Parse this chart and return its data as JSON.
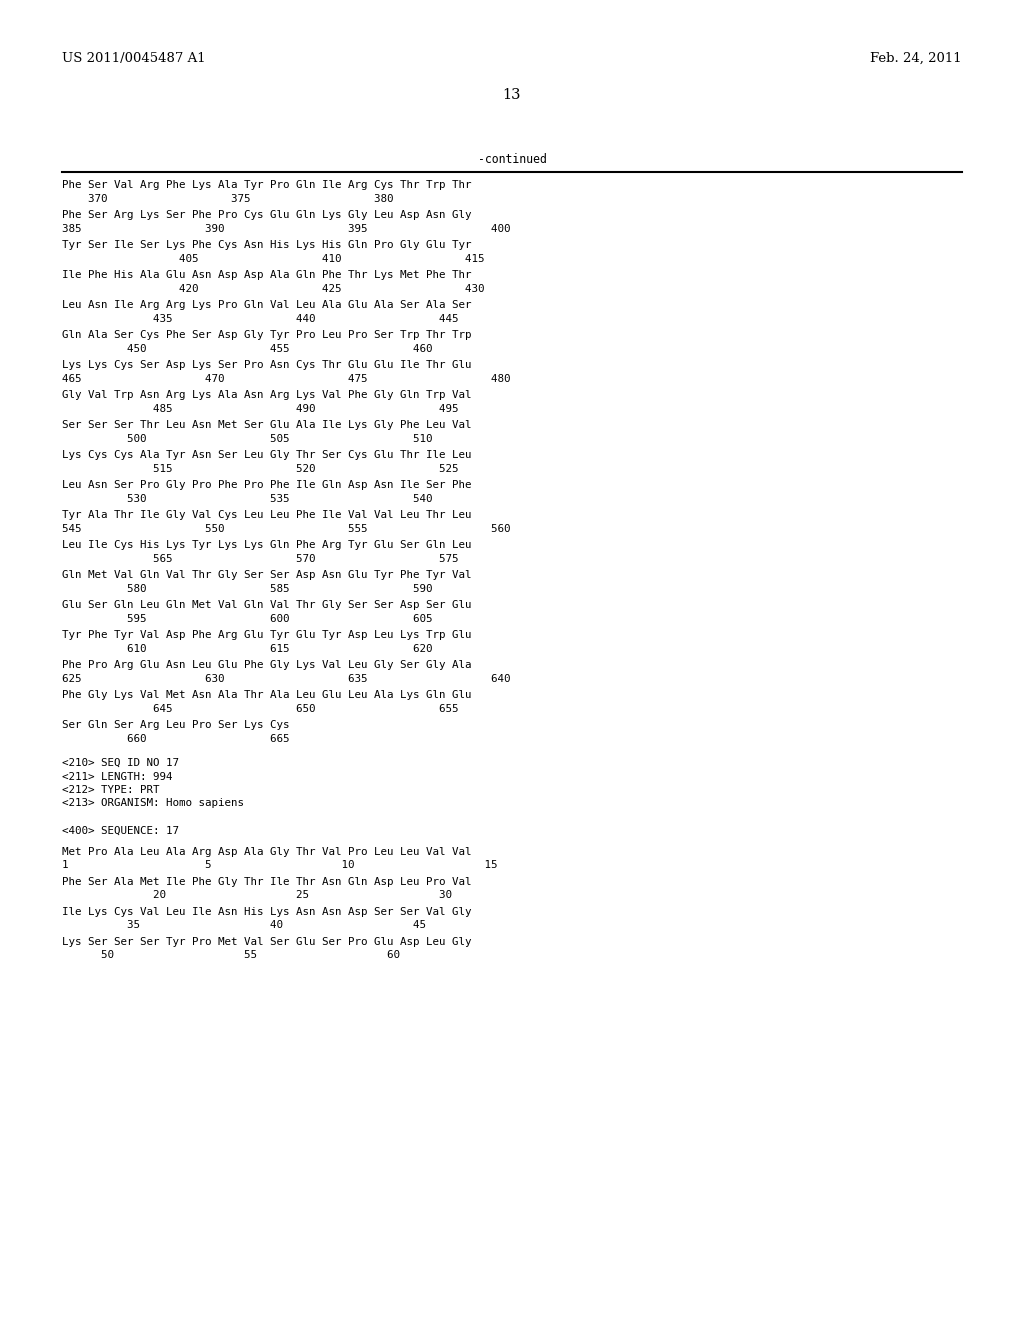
{
  "header_left": "US 2011/0045487 A1",
  "header_right": "Feb. 24, 2011",
  "page_number": "13",
  "continued_label": "-continued",
  "background_color": "#ffffff",
  "text_color": "#000000",
  "seq_lines": [
    [
      "Phe Ser Val Arg Phe Lys Ala Tyr Pro Gln Ile Arg Cys Thr Trp Thr",
      "    370                   375                   380"
    ],
    [
      "Phe Ser Arg Lys Ser Phe Pro Cys Glu Gln Lys Gly Leu Asp Asn Gly",
      "385                   390                   395                   400"
    ],
    [
      "Tyr Ser Ile Ser Lys Phe Cys Asn His Lys His Gln Pro Gly Glu Tyr",
      "                  405                   410                   415"
    ],
    [
      "Ile Phe His Ala Glu Asn Asp Asp Ala Gln Phe Thr Lys Met Phe Thr",
      "                  420                   425                   430"
    ],
    [
      "Leu Asn Ile Arg Arg Lys Pro Gln Val Leu Ala Glu Ala Ser Ala Ser",
      "              435                   440                   445"
    ],
    [
      "Gln Ala Ser Cys Phe Ser Asp Gly Tyr Pro Leu Pro Ser Trp Thr Trp",
      "          450                   455                   460"
    ],
    [
      "Lys Lys Cys Ser Asp Lys Ser Pro Asn Cys Thr Glu Glu Ile Thr Glu",
      "465                   470                   475                   480"
    ],
    [
      "Gly Val Trp Asn Arg Lys Ala Asn Arg Lys Val Phe Gly Gln Trp Val",
      "              485                   490                   495"
    ],
    [
      "Ser Ser Ser Thr Leu Asn Met Ser Glu Ala Ile Lys Gly Phe Leu Val",
      "          500                   505                   510"
    ],
    [
      "Lys Cys Cys Ala Tyr Asn Ser Leu Gly Thr Ser Cys Glu Thr Ile Leu",
      "              515                   520                   525"
    ],
    [
      "Leu Asn Ser Pro Gly Pro Phe Pro Phe Ile Gln Asp Asn Ile Ser Phe",
      "          530                   535                   540"
    ],
    [
      "Tyr Ala Thr Ile Gly Val Cys Leu Leu Phe Ile Val Val Leu Thr Leu",
      "545                   550                   555                   560"
    ],
    [
      "Leu Ile Cys His Lys Tyr Lys Lys Gln Phe Arg Tyr Glu Ser Gln Leu",
      "              565                   570                   575"
    ],
    [
      "Gln Met Val Gln Val Thr Gly Ser Ser Asp Asn Glu Tyr Phe Tyr Val",
      "          580                   585                   590"
    ],
    [
      "Glu Ser Gln Leu Gln Met Val Gln Val Thr Gly Ser Ser Asp Ser Glu",
      "          595                   600                   605"
    ],
    [
      "Tyr Phe Tyr Val Asp Phe Arg Glu Tyr Glu Tyr Asp Leu Lys Trp Glu",
      "          610                   615                   620"
    ],
    [
      "Phe Pro Arg Glu Asn Leu Glu Phe Gly Lys Val Leu Gly Ser Gly Ala",
      "625                   630                   635                   640"
    ],
    [
      "Phe Gly Lys Val Met Asn Ala Thr Ala Leu Glu Leu Ala Lys Gln Glu",
      "              645                   650                   655"
    ],
    [
      "Ser Gln Ser Arg Leu Pro Ser Lys Cys",
      "          660                   665"
    ]
  ],
  "meta_lines": [
    "<210> SEQ ID NO 17",
    "<211> LENGTH: 994",
    "<212> TYPE: PRT",
    "<213> ORGANISM: Homo sapiens",
    "",
    "<400> SEQUENCE: 17"
  ],
  "bottom_seq_lines": [
    [
      "Met Pro Ala Leu Ala Arg Asp Ala Gly Thr Val Pro Leu Leu Val Val",
      "1                     5                    10                    15"
    ],
    [
      "Phe Ser Ala Met Ile Phe Gly Thr Ile Thr Asn Gln Asp Leu Pro Val",
      "              20                    25                    30"
    ],
    [
      "Ile Lys Cys Val Leu Ile Asn His Lys Asn Asn Asp Ser Ser Val Gly",
      "          35                    40                    45"
    ],
    [
      "Lys Ser Ser Ser Tyr Pro Met Val Ser Glu Ser Pro Glu Asp Leu Gly",
      "      50                    55                    60"
    ]
  ]
}
